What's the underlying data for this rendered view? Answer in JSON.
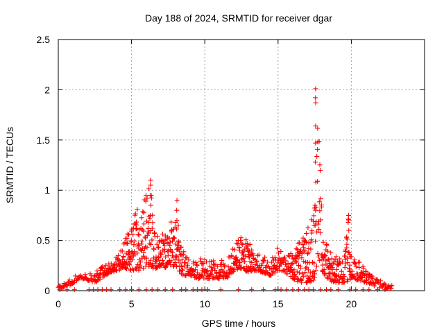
{
  "chart_data": {
    "type": "scatter",
    "title": "Day 188 of 2024, SRMTID for receiver dgar",
    "xlabel": "GPS time / hours",
    "ylabel": "SRMTID / TECUs",
    "xlim": [
      0,
      25
    ],
    "ylim": [
      0,
      2.5
    ],
    "x_ticks": [
      0,
      5,
      10,
      15,
      20
    ],
    "x_tick_labels": [
      "0",
      "5",
      "10",
      "15",
      "20"
    ],
    "y_ticks": [
      0,
      0.5,
      1,
      1.5,
      2,
      2.5
    ],
    "y_tick_labels": [
      "0",
      "0.5",
      "1",
      "1.5",
      "2",
      "2.5"
    ],
    "grid": true,
    "series": [
      {
        "name": "dgar",
        "color": "#ff0000",
        "marker": "plus",
        "envelope_x": [
          0,
          0.5,
          1,
          1.5,
          2,
          2.5,
          3,
          3.5,
          4,
          4.5,
          5,
          5.5,
          6,
          6.3,
          6.5,
          7,
          7.5,
          8,
          8.5,
          9,
          9.5,
          10,
          10.5,
          11,
          11.5,
          12,
          12.5,
          13,
          13.5,
          14,
          14.5,
          15,
          15.5,
          16,
          16.5,
          17,
          17.5,
          17.7,
          18,
          18.5,
          19,
          19.5,
          19.8,
          20,
          20.5,
          21,
          21.5,
          22,
          22.5,
          22.8
        ],
        "envelope_low": [
          0.02,
          0.03,
          0.07,
          0.13,
          0.1,
          0.08,
          0.12,
          0.18,
          0.2,
          0.22,
          0.2,
          0.2,
          0.22,
          0.25,
          0.2,
          0.25,
          0.22,
          0.25,
          0.15,
          0.15,
          0.12,
          0.12,
          0.12,
          0.12,
          0.12,
          0.2,
          0.22,
          0.18,
          0.2,
          0.18,
          0.15,
          0.2,
          0.18,
          0.12,
          0.08,
          0.08,
          0.1,
          0.3,
          0.2,
          0.1,
          0.08,
          0.08,
          0.1,
          0.12,
          0.1,
          0.08,
          0.05,
          0.02,
          0.02,
          0.02
        ],
        "envelope_high": [
          0.05,
          0.08,
          0.13,
          0.18,
          0.17,
          0.18,
          0.25,
          0.3,
          0.35,
          0.5,
          0.65,
          0.9,
          0.95,
          1.1,
          0.6,
          0.6,
          0.55,
          0.9,
          0.4,
          0.3,
          0.3,
          0.35,
          0.3,
          0.3,
          0.3,
          0.45,
          0.55,
          0.5,
          0.38,
          0.35,
          0.35,
          0.45,
          0.35,
          0.4,
          0.5,
          0.6,
          0.85,
          2.01,
          0.75,
          0.4,
          0.35,
          0.3,
          0.75,
          0.35,
          0.3,
          0.2,
          0.15,
          0.1,
          0.08,
          0.05
        ],
        "spikes": [
          {
            "x": 6.3,
            "values": [
              0.75,
              0.85,
              0.95,
              1.05,
              1.1
            ]
          },
          {
            "x": 8.1,
            "values": [
              0.7,
              0.8,
              0.9
            ]
          },
          {
            "x": 17.55,
            "values": [
              0.85,
              1.08,
              1.28,
              1.47,
              1.64,
              1.87,
              1.92,
              2.01
            ]
          },
          {
            "x": 19.8,
            "values": [
              0.6,
              0.68,
              0.75
            ]
          }
        ],
        "zero_points_x": [
          0.1,
          0.6,
          1.1,
          2.1,
          2.4,
          2.7,
          3.0,
          3.3,
          3.6,
          4.2,
          4.6,
          5.0,
          5.5,
          6.0,
          6.4,
          6.8,
          7.3,
          7.8,
          8.4,
          8.7,
          9.2,
          9.5,
          9.8,
          10.2,
          11.1,
          12.3,
          13.2,
          14.0,
          14.8,
          15.2,
          15.6,
          16.0,
          16.4,
          16.8,
          17.1,
          17.4,
          17.9,
          18.3,
          18.6,
          19.1,
          19.9,
          20.3,
          20.8,
          21.2,
          21.8,
          22.3
        ]
      }
    ]
  }
}
